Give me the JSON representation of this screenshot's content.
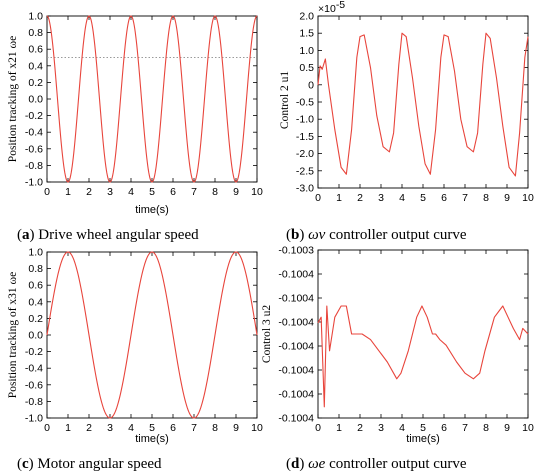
{
  "chart_data": [
    {
      "type": "line",
      "ylabel": "Position tracking of x21 ωe",
      "xlabel": "time(s)",
      "caption": {
        "letter": "a",
        "text": "Drive wheel angular speed"
      },
      "xlim": [
        0,
        10
      ],
      "ylim": [
        -1.0,
        1.0
      ],
      "xticks": [
        "0",
        "1",
        "2",
        "3",
        "4",
        "5",
        "6",
        "7",
        "8",
        "9",
        "10"
      ],
      "yticks": [
        "-1.0",
        "-0.8",
        "-0.6",
        "-0.4",
        "-0.2",
        "0.0",
        "0.2",
        "0.4",
        "0.6",
        "0.8",
        "1.0"
      ],
      "reference_line": {
        "y": 0.5,
        "style": "dotted"
      },
      "grid": false,
      "series": [
        {
          "color": "#e8453c",
          "function": "cos",
          "amplitude": 1.0,
          "period": 2.0,
          "phase": 0,
          "x_start": 0,
          "x_end": 10
        }
      ]
    },
    {
      "type": "line",
      "ylabel": "Control 2 u1",
      "xlabel": "",
      "exponent_label": "×10",
      "exponent_power": "-5",
      "caption": {
        "letter": "b",
        "symbol": "ωv",
        "text": "controller output curve"
      },
      "xlim": [
        0,
        10
      ],
      "ylim": [
        -3.0,
        2.0
      ],
      "xticks": [
        "0",
        "1",
        "2",
        "3",
        "4",
        "5",
        "6",
        "7",
        "8",
        "9",
        "10"
      ],
      "yticks": [
        "-3.0",
        "-2.5",
        "-2.0",
        "-1.5",
        "-1.0",
        "-0.5",
        "0",
        "0.5",
        "1.0",
        "1.5",
        "2.0"
      ],
      "grid": false,
      "series": [
        {
          "color": "#e8453c",
          "x": [
            0,
            0.1,
            0.2,
            0.35,
            0.5,
            0.8,
            1.1,
            1.35,
            1.6,
            1.85,
            2.0,
            2.2,
            2.5,
            2.8,
            3.1,
            3.4,
            3.6,
            3.85,
            4.0,
            4.2,
            4.5,
            4.8,
            5.1,
            5.35,
            5.6,
            5.85,
            6.0,
            6.2,
            6.5,
            6.8,
            7.1,
            7.4,
            7.6,
            7.85,
            8.0,
            8.2,
            8.5,
            8.8,
            9.1,
            9.4,
            9.6,
            9.85,
            10.0
          ],
          "y": [
            0.0,
            0.55,
            0.45,
            0.75,
            0.0,
            -1.3,
            -2.4,
            -2.6,
            -1.3,
            0.8,
            1.4,
            1.45,
            0.5,
            -0.9,
            -1.8,
            -1.95,
            -1.4,
            0.6,
            1.5,
            1.4,
            0.2,
            -1.2,
            -2.3,
            -2.6,
            -1.3,
            0.8,
            1.45,
            1.4,
            0.4,
            -1.0,
            -1.8,
            -1.95,
            -1.4,
            0.6,
            1.5,
            1.35,
            0.2,
            -1.2,
            -2.4,
            -2.65,
            -1.4,
            0.8,
            1.4
          ]
        }
      ]
    },
    {
      "type": "line",
      "ylabel": "Position tracking of x31 ωe",
      "xlabel": "time(s)",
      "caption": {
        "letter": "c",
        "text": "Motor angular speed"
      },
      "xlim": [
        0,
        10
      ],
      "ylim": [
        -1.0,
        1.0
      ],
      "xticks": [
        "0",
        "1",
        "2",
        "3",
        "4",
        "5",
        "6",
        "7",
        "8",
        "9",
        "10"
      ],
      "yticks": [
        "-1.0",
        "-0.8",
        "-0.6",
        "-0.4",
        "-0.2",
        "0.0",
        "0.2",
        "0.4",
        "0.6",
        "0.8",
        "1.0"
      ],
      "grid": false,
      "series": [
        {
          "color": "#e8453c",
          "function": "sin",
          "amplitude": 1.0,
          "period": 4.0,
          "phase": 0,
          "x_start": 0,
          "x_end": 10
        }
      ]
    },
    {
      "type": "line",
      "ylabel": "Control 3 u2",
      "xlabel": "time(s)",
      "caption": {
        "letter": "d",
        "symbol": "ωe",
        "text": "controller output curve"
      },
      "xlim": [
        0,
        10
      ],
      "ylim": [
        -0.10045,
        -0.1003
      ],
      "xticks": [
        "0",
        "1",
        "2",
        "3",
        "4",
        "5",
        "6",
        "7",
        "8",
        "9",
        "10"
      ],
      "yticks": [
        "-0.1004",
        "-0.1004",
        "-0.1004",
        "-0.1004",
        "-0.1004",
        "-0.1004",
        "-0.1004",
        "-0.1003"
      ],
      "grid": false,
      "series": [
        {
          "color": "#e8453c",
          "x": [
            0,
            0.15,
            0.3,
            0.42,
            0.55,
            0.8,
            1.1,
            1.35,
            1.6,
            1.75,
            2.1,
            2.5,
            2.9,
            3.3,
            3.6,
            3.75,
            3.95,
            4.3,
            4.7,
            4.95,
            5.2,
            5.45,
            5.6,
            5.8,
            6.1,
            6.6,
            7.0,
            7.4,
            7.7,
            7.95,
            8.4,
            8.8,
            9.05,
            9.3,
            9.6,
            9.75,
            10.0
          ],
          "y": [
            -0.100365,
            -0.10036,
            -0.10044,
            -0.10035,
            -0.10039,
            -0.10036,
            -0.10035,
            -0.10035,
            -0.100375,
            -0.100375,
            -0.100375,
            -0.10038,
            -0.10039,
            -0.1004,
            -0.10041,
            -0.100415,
            -0.10041,
            -0.10039,
            -0.10036,
            -0.10035,
            -0.10036,
            -0.100375,
            -0.100375,
            -0.10038,
            -0.100385,
            -0.1004,
            -0.10041,
            -0.100415,
            -0.10041,
            -0.10039,
            -0.10036,
            -0.10035,
            -0.10036,
            -0.10037,
            -0.10038,
            -0.10037,
            -0.100375
          ]
        }
      ]
    }
  ]
}
